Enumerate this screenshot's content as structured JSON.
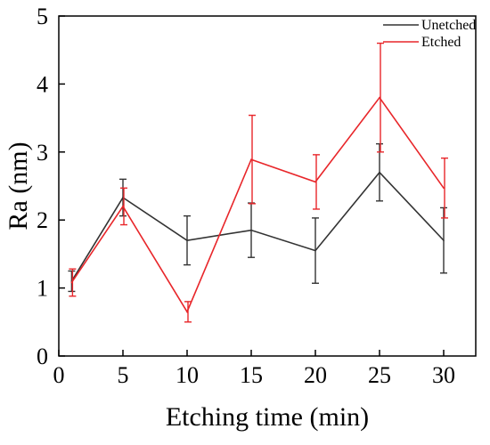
{
  "chart_data": {
    "type": "line",
    "title": "",
    "xlabel": "Etching time (min)",
    "ylabel": "Ra (nm)",
    "xlim": [
      0,
      32.5
    ],
    "ylim": [
      0,
      5
    ],
    "xticks": [
      0,
      5,
      10,
      15,
      20,
      25,
      30
    ],
    "yticks": [
      0,
      1,
      2,
      3,
      4,
      5
    ],
    "x": [
      1,
      5,
      10,
      15,
      20,
      25,
      30
    ],
    "grid": false,
    "legend_position": "top-right",
    "series": [
      {
        "name": "Unetched",
        "color": "#333333",
        "values": [
          1.1,
          2.33,
          1.7,
          1.85,
          1.55,
          2.7,
          1.7
        ],
        "error": [
          0.15,
          0.27,
          0.36,
          0.4,
          0.48,
          0.42,
          0.48
        ]
      },
      {
        "name": "Etched",
        "color": "#e8262a",
        "values": [
          1.08,
          2.2,
          0.65,
          2.89,
          2.56,
          3.8,
          2.47
        ],
        "error": [
          0.2,
          0.27,
          0.15,
          0.65,
          0.4,
          0.8,
          0.44
        ]
      }
    ]
  }
}
